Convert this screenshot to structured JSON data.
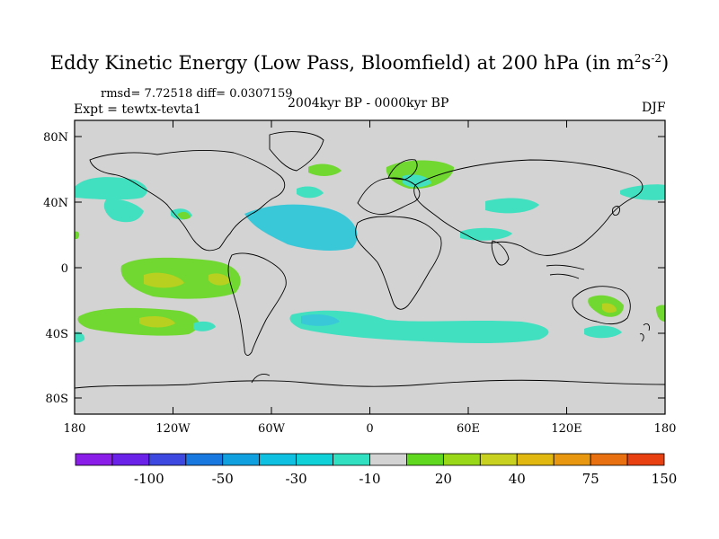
{
  "title": {
    "main": "Eddy Kinetic Energy (Low Pass, Bloomfield) at 200 hPa (in m",
    "sup1": "2",
    "mid": "s",
    "sup2": "-2",
    "end": ")"
  },
  "stats": "rmsd= 7.72518 diff= 0.0307159",
  "experiment": "Expt = tewtx-tevta1",
  "period": "2004kyr BP - 0000kyr BP",
  "season": "DJF",
  "map": {
    "lat_ticks": [
      "80N",
      "40N",
      "0",
      "40S",
      "80S"
    ],
    "lon_ticks": [
      "180",
      "120W",
      "60W",
      "0",
      "60E",
      "120E",
      "180"
    ],
    "fill_colors": {
      "background": "#d3d3d3",
      "cyan": "#40e0c0",
      "cyan_light": "#2fd8c8",
      "teal_blue": "#38c8d8",
      "green": "#70d830",
      "yellow_green": "#b8d020"
    }
  },
  "colorbar": {
    "colors": [
      "#8a1ee8",
      "#6b22e8",
      "#3c48e0",
      "#1878e0",
      "#10a0e0",
      "#0fc0e0",
      "#10d0d8",
      "#30e0c0",
      "#d3d3d3",
      "#60d820",
      "#98d818",
      "#c8d020",
      "#e0b810",
      "#e89810",
      "#e87010",
      "#e84010"
    ],
    "labels": [
      "-100",
      "-50",
      "-30",
      "-10",
      "20",
      "40",
      "75",
      "150"
    ]
  }
}
